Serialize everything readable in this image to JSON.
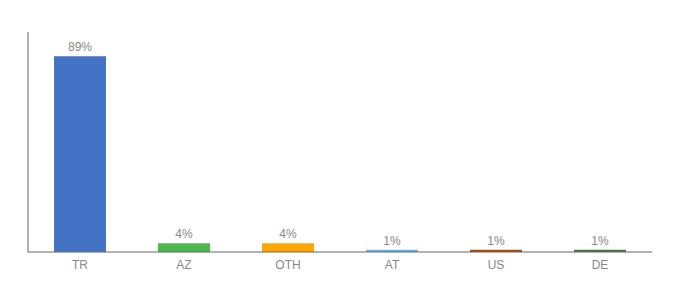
{
  "chart_data": {
    "type": "bar",
    "categories": [
      "TR",
      "AZ",
      "OTH",
      "AT",
      "US",
      "DE"
    ],
    "values": [
      89,
      4,
      4,
      1,
      1,
      1
    ],
    "value_labels": [
      "89%",
      "4%",
      "4%",
      "1%",
      "1%",
      "1%"
    ],
    "colors": [
      "#4472c4",
      "#4db84d",
      "#ffa500",
      "#64b5f6",
      "#b34700",
      "#3a7d3a"
    ],
    "ylim": [
      0,
      100
    ],
    "yticks": [],
    "tick_labels": "x",
    "data_labels": true,
    "grid": false
  }
}
